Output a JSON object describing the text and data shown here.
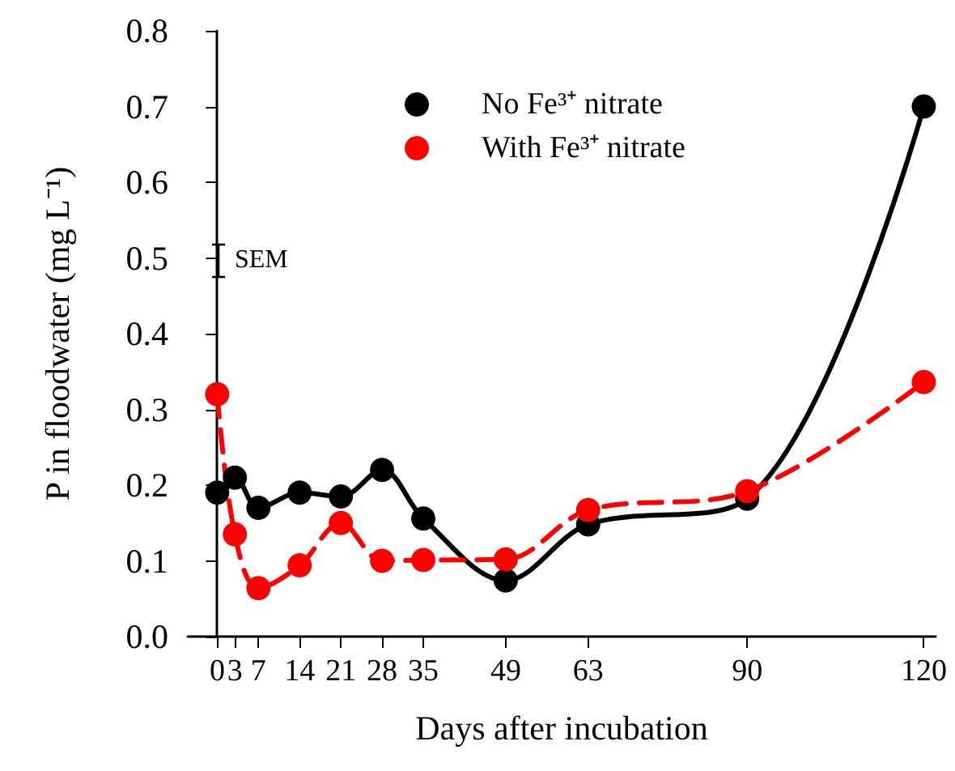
{
  "chart_data": {
    "type": "line",
    "xlabel": "Days after incubation",
    "ylabel": "P in floodwater (mg L⁻¹)",
    "x": [
      0,
      3,
      7,
      14,
      21,
      28,
      35,
      49,
      63,
      90,
      120
    ],
    "series": [
      {
        "name": "No Fe³⁺ nitrate",
        "color": "#000000",
        "line_style": "solid",
        "values": [
          0.19,
          0.21,
          0.17,
          0.19,
          0.185,
          0.22,
          0.156,
          0.074,
          0.148,
          0.182,
          0.7
        ]
      },
      {
        "name": "With Fe³⁺ nitrate",
        "color": "#ff0000",
        "line_style": "dashed",
        "values": [
          0.32,
          0.135,
          0.064,
          0.094,
          0.15,
          0.1,
          0.101,
          0.102,
          0.167,
          0.192,
          0.336
        ]
      }
    ],
    "xlim": [
      -5,
      122
    ],
    "xticks": [
      0,
      3,
      7,
      14,
      21,
      28,
      35,
      49,
      63,
      90,
      120
    ],
    "ylim": [
      0,
      0.8
    ],
    "yticks": [
      {
        "value": 0,
        "label": "0.0"
      },
      {
        "value": 0.1,
        "label": "0.1"
      },
      {
        "value": 0.2,
        "label": "0.2"
      },
      {
        "value": 0.3,
        "label": "0.3"
      },
      {
        "value": 0.4,
        "label": "0.4"
      },
      {
        "value": 0.5,
        "label": "0.5"
      },
      {
        "value": 0.6,
        "label": "0.6"
      },
      {
        "value": 0.7,
        "label": "0.7"
      },
      {
        "value": 0.8,
        "label": "0.8"
      }
    ],
    "annotations": [
      "SEM"
    ],
    "marker": "circle",
    "legend": "top",
    "grid": false
  }
}
